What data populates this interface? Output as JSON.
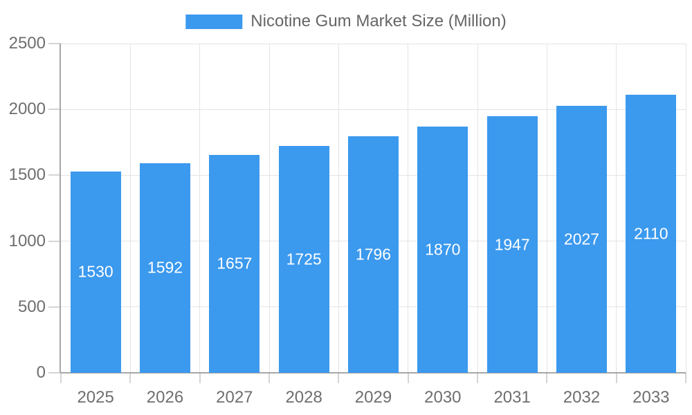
{
  "legend": {
    "label": "Nicotine Gum Market Size (Million)"
  },
  "chart_data": {
    "type": "bar",
    "title": "Nicotine Gum Market Size (Million)",
    "categories": [
      "2025",
      "2026",
      "2027",
      "2028",
      "2029",
      "2030",
      "2031",
      "2032",
      "2033"
    ],
    "values": [
      1530,
      1592,
      1657,
      1725,
      1796,
      1870,
      1947,
      2027,
      2110
    ],
    "xlabel": "",
    "ylabel": "",
    "ylim": [
      0,
      2500
    ],
    "yticks": [
      0,
      500,
      1000,
      1500,
      2000,
      2500
    ],
    "grid": true,
    "legend_position": "top-center",
    "value_labels": "inside-center",
    "colors": {
      "bar": "#3B99EE",
      "bar_label": "#ffffff",
      "axis_line": "#a6a6a6",
      "tick": "#d4d4d4",
      "gridline": "#e4e4e4",
      "axis_text": "#6e6e6e",
      "legend_text": "#666666",
      "background": "#ffffff"
    }
  }
}
